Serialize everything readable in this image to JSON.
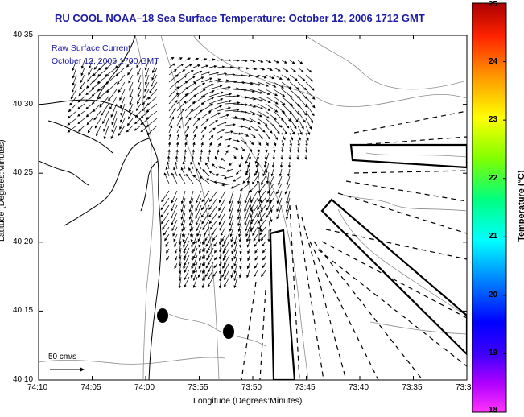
{
  "title": "RU COOL  NOAA–18  Sea Surface Temperature:  October 12, 2006 1712 GMT",
  "legend": {
    "line1": "Raw Surface Current",
    "line2": "October 12, 2006 1700 GMT"
  },
  "axes": {
    "xlabel": "Longitude (Degrees:Minutes)",
    "ylabel": "Latitude (Degrees:Minutes)",
    "xticks": [
      "74:10",
      "74:05",
      "74:00",
      "73:55",
      "73:50",
      "73:45",
      "73:40",
      "73:35",
      "73:3"
    ],
    "yticks": [
      "40:35",
      "40:30",
      "40:25",
      "40:20",
      "40:15",
      "40:10"
    ]
  },
  "colorbar": {
    "label": "Temperature (°C)",
    "ticks": [
      "25",
      "24",
      "23",
      "22",
      "21",
      "20",
      "19",
      "18"
    ]
  },
  "scale": {
    "label": "50 cm/s"
  },
  "colors": {
    "title": "#1a1aa6",
    "coast": "#000000",
    "contour": "#8c8c8c"
  }
}
